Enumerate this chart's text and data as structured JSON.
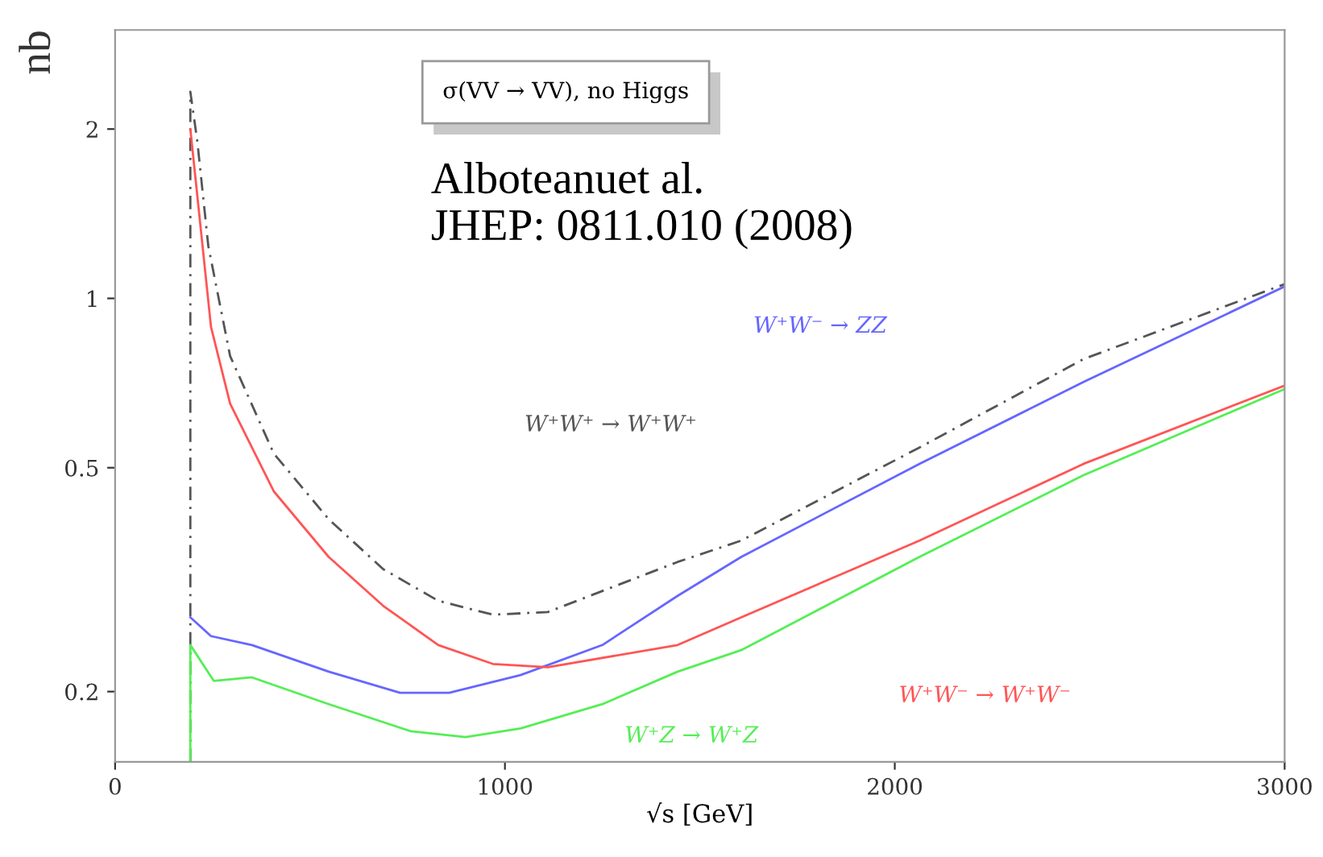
{
  "chart_data": {
    "type": "line",
    "xlabel": "√s [GeV]",
    "ylabel": "nb",
    "annotations": [
      "σ(VV → VV), no Higgs",
      "Alboteanuet al.\nJHEP: 0811.010 (2008)"
    ],
    "log": "y",
    "xlim": [
      0,
      3000
    ],
    "ylim": [
      0.15,
      3.0
    ],
    "xticks": [
      0,
      1000,
      2000,
      3000
    ],
    "yticks": [
      0.2,
      0.5,
      1,
      2
    ],
    "grid": false,
    "legend": false,
    "marker": "none",
    "series": [
      {
        "name": "W⁺W⁺ → W⁺W⁺",
        "color": "#555555",
        "line_style": "dashed",
        "x": [
          193,
          193,
          211,
          239,
          295,
          407,
          548,
          688,
          829,
          969,
          1110,
          1443,
          1606,
          2063,
          2484,
          3000
        ],
        "values": [
          0.15,
          2.33,
          1.9,
          1.24,
          0.79,
          0.53,
          0.405,
          0.33,
          0.29,
          0.274,
          0.277,
          0.34,
          0.371,
          0.543,
          0.78,
          1.06
        ]
      },
      {
        "name": "W⁺W⁻ → ZZ",
        "color": "#6666ff",
        "line_style": "solid",
        "x": [
          193,
          246,
          351,
          548,
          731,
          857,
          1040,
          1250,
          1443,
          1606,
          2063,
          2484,
          3000
        ],
        "values": [
          0.271,
          0.251,
          0.242,
          0.217,
          0.199,
          0.199,
          0.214,
          0.242,
          0.296,
          0.347,
          0.508,
          0.71,
          1.05
        ]
      },
      {
        "name": "W⁺W⁻ → W⁺W⁻",
        "color": "#ff5555",
        "line_style": "solid",
        "x": [
          193,
          246,
          295,
          407,
          548,
          688,
          829,
          969,
          1110,
          1443,
          1606,
          2063,
          2484,
          3000
        ],
        "values": [
          2.0,
          0.89,
          0.65,
          0.454,
          0.347,
          0.284,
          0.242,
          0.224,
          0.221,
          0.242,
          0.271,
          0.371,
          0.508,
          0.7
        ]
      },
      {
        "name": "W⁺Z → W⁺Z",
        "color": "#55ee55",
        "line_style": "solid",
        "x": [
          193,
          193,
          253,
          351,
          548,
          759,
          899,
          1040,
          1250,
          1443,
          1606,
          2063,
          2484,
          3000
        ],
        "values": [
          0.15,
          0.242,
          0.209,
          0.212,
          0.19,
          0.17,
          0.166,
          0.172,
          0.19,
          0.217,
          0.237,
          0.347,
          0.485,
          0.69
        ]
      }
    ]
  }
}
